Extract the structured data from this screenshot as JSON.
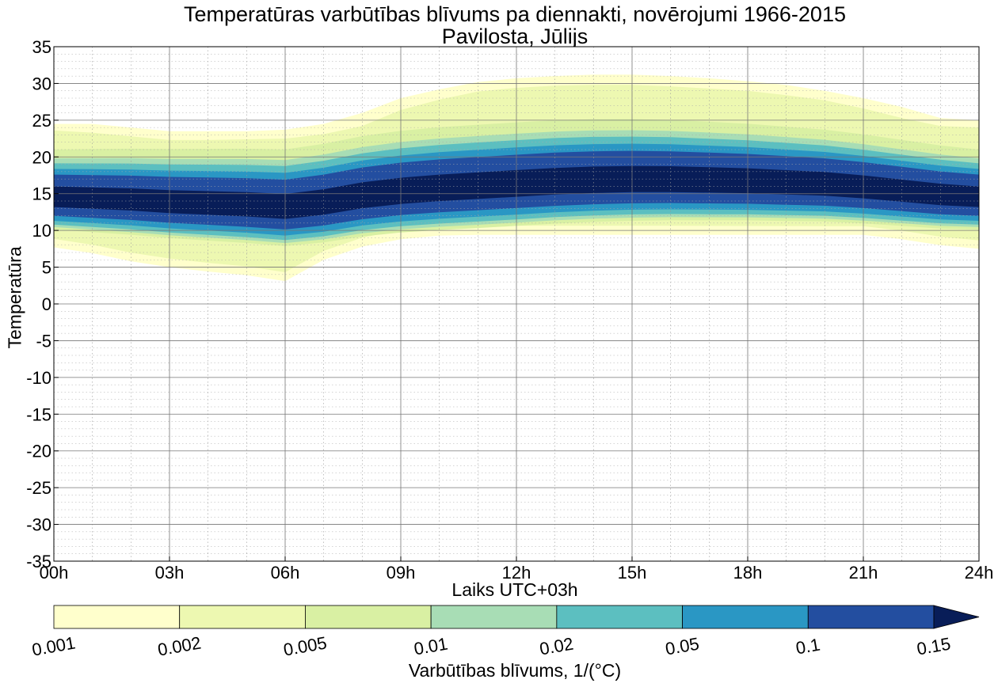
{
  "chart_data": {
    "type": "contourf",
    "title": "Temperatūras varbūtības blīvums pa diennakti, novērojumi 1966-2015",
    "subtitle": "Pavilosta, Jūlijs",
    "xlabel": "Laiks UTC+03h",
    "ylabel": "Temperatūra",
    "x_ticks": [
      "00h",
      "03h",
      "06h",
      "09h",
      "12h",
      "15h",
      "18h",
      "21h",
      "24h"
    ],
    "x_hours": [
      0,
      3,
      6,
      9,
      12,
      15,
      18,
      21,
      24
    ],
    "xlim": [
      0,
      24
    ],
    "y_ticks": [
      35,
      30,
      25,
      20,
      15,
      10,
      5,
      0,
      -5,
      -10,
      -15,
      -20,
      -25,
      -30,
      -35
    ],
    "ylim": [
      -35,
      35
    ],
    "grid": true,
    "colorbar": {
      "label": "Varbūtības blīvums, 1/($^\\circ$C)",
      "label_display": "Varbūtības blīvums, 1/(°C)",
      "levels": [
        "0.001",
        "0.002",
        "0.005",
        "0.01",
        "0.02",
        "0.05",
        "0.1",
        "0.15"
      ],
      "colors": [
        "#ffffcc",
        "#edf8b1",
        "#d9f0a3",
        "#a8ddb5",
        "#5cbfc0",
        "#2a97c4",
        "#234ea0",
        "#081d58"
      ],
      "extend": "max"
    },
    "contour_bands": {
      "hours": [
        0,
        1,
        2,
        3,
        4,
        5,
        6,
        7,
        8,
        9,
        10,
        11,
        12,
        13,
        14,
        15,
        16,
        17,
        18,
        19,
        20,
        21,
        22,
        23,
        24
      ],
      "level_0.001": {
        "upper": [
          24.5,
          24.5,
          24.0,
          23.5,
          23.5,
          23.5,
          23.7,
          24.5,
          26.0,
          28.0,
          29.2,
          30.2,
          30.7,
          31.0,
          31.2,
          31.2,
          31.0,
          30.7,
          30.3,
          29.8,
          29.0,
          28.0,
          26.8,
          25.3,
          25.0
        ],
        "lower": [
          7.7,
          6.9,
          5.8,
          5.0,
          4.4,
          3.9,
          3.1,
          6.0,
          7.8,
          8.8,
          9.3,
          9.4,
          9.4,
          9.4,
          9.4,
          9.4,
          9.4,
          9.4,
          9.4,
          9.4,
          9.4,
          9.4,
          8.8,
          8.0,
          7.5
        ]
      },
      "level_0.002": {
        "upper": [
          23.6,
          23.3,
          22.8,
          22.3,
          22.3,
          22.4,
          22.5,
          23.1,
          24.2,
          26.4,
          27.8,
          28.9,
          29.4,
          29.7,
          29.8,
          29.8,
          29.6,
          29.3,
          29.0,
          28.4,
          27.7,
          26.6,
          25.3,
          24.2,
          24.0
        ]
      }
    }
  }
}
